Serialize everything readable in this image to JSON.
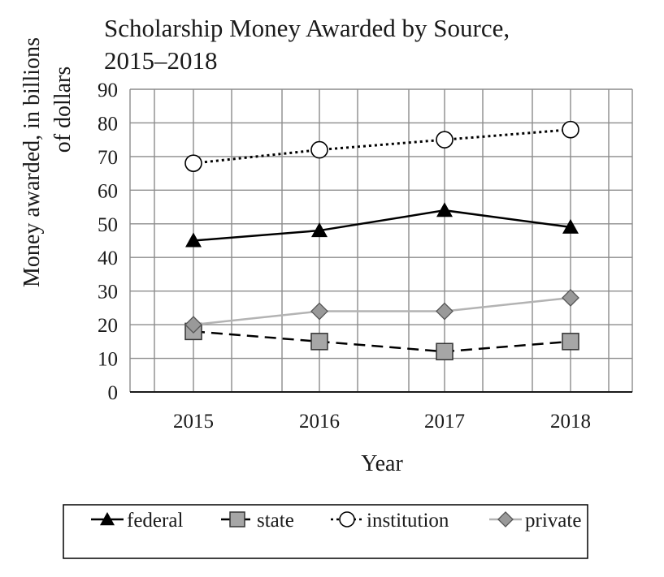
{
  "chart_data": {
    "type": "line",
    "title_line1": "Scholarship Money Awarded by Source,",
    "title_line2": "2015–2018",
    "ylabel_line1": "Money awarded, in billions",
    "ylabel_line2": "of dollars",
    "xlabel": "Year",
    "categories": [
      "2015",
      "2016",
      "2017",
      "2018"
    ],
    "ylim": [
      0,
      90
    ],
    "yticks": [
      0,
      10,
      20,
      30,
      40,
      50,
      60,
      70,
      80,
      90
    ],
    "grid": true,
    "legend_position": "bottom",
    "series": [
      {
        "name": "federal",
        "values": [
          45,
          48,
          54,
          49
        ],
        "color": "#000000",
        "marker": "triangle",
        "line_style": "solid"
      },
      {
        "name": "state",
        "values": [
          18,
          15,
          12,
          15
        ],
        "color": "#000000",
        "marker_color": "#a6a6a6",
        "marker": "square",
        "line_style": "dashed"
      },
      {
        "name": "institution",
        "values": [
          68,
          72,
          75,
          78
        ],
        "color": "#000000",
        "marker_color": "#ffffff",
        "marker": "circle",
        "line_style": "dotted"
      },
      {
        "name": "private",
        "values": [
          20,
          24,
          24,
          28
        ],
        "color": "#b3b3b3",
        "marker_color": "#999999",
        "marker": "diamond",
        "line_style": "solid"
      }
    ]
  }
}
